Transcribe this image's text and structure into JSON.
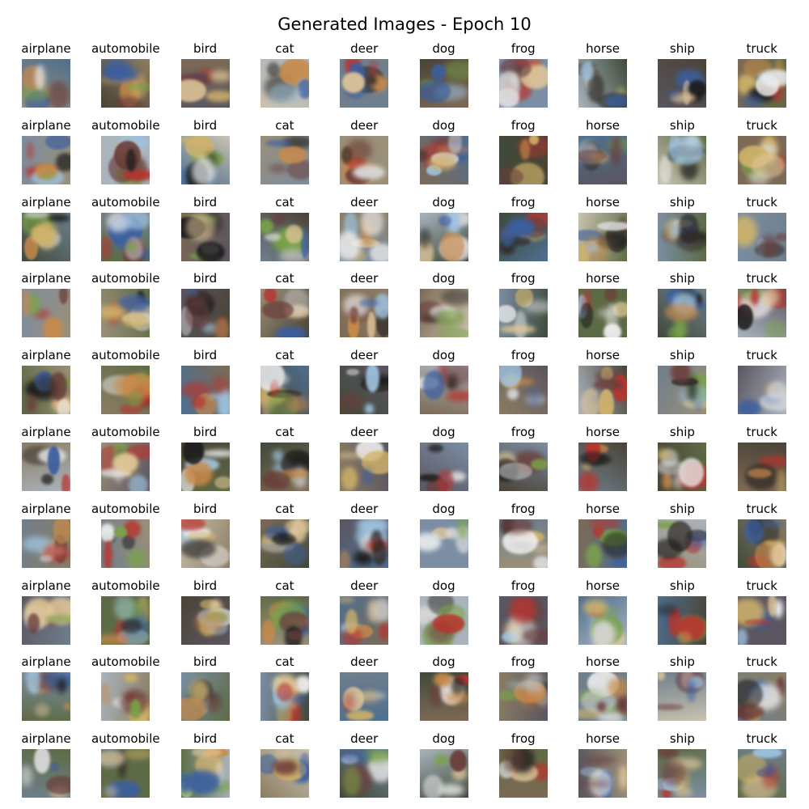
{
  "figure": {
    "title": "Generated Images - Epoch 10"
  },
  "grid": {
    "class_names": [
      "airplane",
      "automobile",
      "bird",
      "cat",
      "deer",
      "dog",
      "frog",
      "horse",
      "ship",
      "truck"
    ],
    "rows": [
      [
        "airplane",
        "automobile",
        "bird",
        "cat",
        "deer",
        "dog",
        "frog",
        "horse",
        "ship",
        "truck"
      ],
      [
        "airplane",
        "automobile",
        "bird",
        "cat",
        "deer",
        "dog",
        "frog",
        "horse",
        "ship",
        "truck"
      ],
      [
        "airplane",
        "automobile",
        "bird",
        "cat",
        "deer",
        "dog",
        "frog",
        "horse",
        "ship",
        "truck"
      ],
      [
        "airplane",
        "automobile",
        "bird",
        "cat",
        "deer",
        "dog",
        "frog",
        "horse",
        "ship",
        "truck"
      ],
      [
        "airplane",
        "automobile",
        "bird",
        "cat",
        "deer",
        "dog",
        "frog",
        "horse",
        "ship",
        "truck"
      ],
      [
        "airplane",
        "automobile",
        "bird",
        "cat",
        "deer",
        "dog",
        "frog",
        "horse",
        "ship",
        "truck"
      ],
      [
        "airplane",
        "automobile",
        "bird",
        "cat",
        "deer",
        "dog",
        "frog",
        "horse",
        "ship",
        "truck"
      ],
      [
        "airplane",
        "automobile",
        "bird",
        "cat",
        "deer",
        "dog",
        "frog",
        "horse",
        "ship",
        "truck"
      ],
      [
        "airplane",
        "automobile",
        "bird",
        "cat",
        "deer",
        "dog",
        "frog",
        "horse",
        "ship",
        "truck"
      ],
      [
        "airplane",
        "automobile",
        "bird",
        "cat",
        "deer",
        "dog",
        "frog",
        "horse",
        "ship",
        "truck"
      ]
    ]
  },
  "palette": {
    "backgrounds": [
      "#6f7f8c",
      "#8b7d62",
      "#5d6b45",
      "#a9b4bd",
      "#4a4336",
      "#7b8ea3",
      "#9a8f78",
      "#3f4a3a",
      "#c9c2b0",
      "#5a5560",
      "#7d6a55",
      "#4e6f8f"
    ],
    "accents": [
      "#d9d9d9",
      "#1a1a1a",
      "#b8342e",
      "#e2c89a",
      "#3b5fa0",
      "#7aa34a",
      "#f0f0f0",
      "#c98a4b",
      "#2f2a26",
      "#9fc3e0",
      "#d1b36a",
      "#6b3d3a"
    ]
  }
}
